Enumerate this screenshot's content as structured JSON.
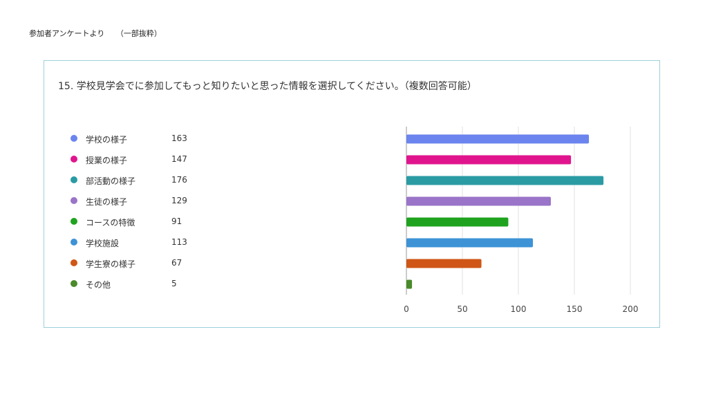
{
  "header": {
    "title": "参加者アンケートより",
    "subtitle": "（一部抜粋）"
  },
  "chart_data": {
    "type": "bar",
    "orientation": "horizontal",
    "title": "15. 学校見学会でに参加してもっと知りたいと思った情報を選択してください。（複数回答可能）",
    "categories": [
      "学校の様子",
      "授業の様子",
      "部活動の様子",
      "生徒の様子",
      "コースの特徴",
      "学校施設",
      "学生寮の様子",
      "その他"
    ],
    "values": [
      163,
      147,
      176,
      129,
      91,
      113,
      67,
      5
    ],
    "colors": [
      "#6b84ee",
      "#e0158d",
      "#2a9ba3",
      "#9a74c8",
      "#1fa31f",
      "#3d93d6",
      "#cf5616",
      "#4a8a2a"
    ],
    "xlim": [
      0,
      200
    ],
    "x_ticks": [
      0,
      50,
      100,
      150,
      200
    ],
    "grid": true,
    "legend_position": "left"
  }
}
